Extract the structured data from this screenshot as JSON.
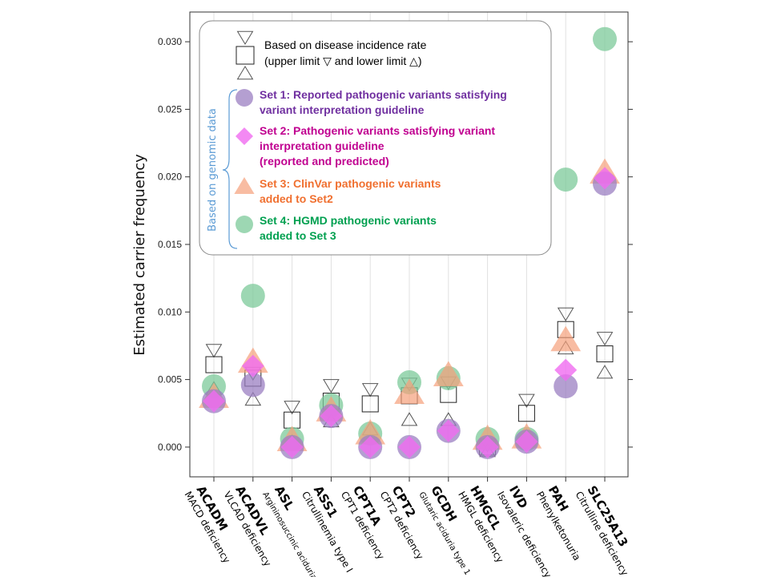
{
  "chart_data": {
    "type": "scatter",
    "ylabel": "Estimated carrier frequency",
    "ylim": [
      -0.0022,
      0.0322
    ],
    "yticks": [
      0.0,
      0.005,
      0.01,
      0.015,
      0.02,
      0.025,
      0.03
    ],
    "ytick_labels": [
      "0.000",
      "0.005",
      "0.010",
      "0.015",
      "0.020",
      "0.025",
      "0.030"
    ],
    "grid": "vertical",
    "legend_placement": "top-left",
    "categories": [
      {
        "gene": "ACADM",
        "disease": "MACD deficiency",
        "disease_small": false
      },
      {
        "gene": "ACADVL",
        "disease": "VLCAD deficiency",
        "disease_small": false
      },
      {
        "gene": "ASL",
        "disease": "Argininosuccinic aciduria",
        "disease_small": true
      },
      {
        "gene": "ASS1",
        "disease": "Citrullinemia type I",
        "disease_small": false
      },
      {
        "gene": "CPT1A",
        "disease": "CPT1 deficiency",
        "disease_small": false
      },
      {
        "gene": "CPT2",
        "disease": "CPT2 deficiency",
        "disease_small": false
      },
      {
        "gene": "GCDH",
        "disease": "Glutaric aciduria type 1",
        "disease_small": true
      },
      {
        "gene": "HMGCL",
        "disease": "HMGL deficiency",
        "disease_small": false
      },
      {
        "gene": "IVD",
        "disease": "Isovaleric deficiency",
        "disease_small": false
      },
      {
        "gene": "PAH",
        "disease": "Phenylketonuria",
        "disease_small": false
      },
      {
        "gene": "SLC25A13",
        "disease": "Citrulline deficiency",
        "disease_small": false
      }
    ],
    "incidence": {
      "upper": [
        0.0072,
        0.0055,
        0.003,
        0.0046,
        0.0043,
        0.0047,
        0.0048,
        0.0002,
        0.0035,
        0.0099,
        0.0081
      ],
      "point": [
        0.0061,
        0.0051,
        0.002,
        0.0034,
        0.0032,
        0.0038,
        0.0039,
        0.0,
        0.0025,
        0.0087,
        0.0069
      ],
      "lower": [
        0.0043,
        0.0035,
        0.0004,
        0.0019,
        0.0013,
        0.002,
        0.002,
        -0.0003,
        0.0008,
        0.0073,
        0.0055
      ]
    },
    "series": [
      {
        "name": "Set 1",
        "marker": "circle",
        "color": "#9b7fc2",
        "values": [
          0.0034,
          0.0046,
          0.0,
          0.0023,
          0.0,
          0.0,
          0.0012,
          0.0,
          0.0004,
          0.0045,
          0.0195
        ]
      },
      {
        "name": "Set 2",
        "marker": "diamond",
        "color": "#f06cf0",
        "values": [
          0.0034,
          0.006,
          0.0,
          0.0023,
          0.0,
          0.0,
          0.0012,
          0.0,
          0.0004,
          0.0057,
          0.0199
        ]
      },
      {
        "name": "Set 3",
        "marker": "triangle",
        "color": "#f5a07a",
        "values": [
          0.0037,
          0.0063,
          0.0005,
          0.0027,
          0.001,
          0.004,
          0.0053,
          0.0006,
          0.0007,
          0.0079,
          0.0203
        ]
      },
      {
        "name": "Set 4",
        "marker": "circle",
        "color": "#7cc99a",
        "values": [
          0.0045,
          0.0112,
          0.0006,
          0.0031,
          0.001,
          0.0048,
          0.0051,
          0.0006,
          0.0006,
          0.0198,
          0.0302
        ]
      }
    ]
  },
  "legend": {
    "incidence_line1": "Based on disease incidence rate",
    "incidence_line2": "(upper limit ▽ and lower limit △)",
    "brace_label": "Based on genomic data",
    "brace_color": "#5b9bd5",
    "sets": [
      {
        "lines": [
          "Set 1: Reported pathogenic variants satisfying",
          "variant interpretation guideline"
        ],
        "color": "#7030a0",
        "marker": "circle",
        "marker_color": "#9b7fc2"
      },
      {
        "lines": [
          "Set 2: Pathogenic variants satisfying variant",
          "interpretation guideline",
          " (reported and predicted)"
        ],
        "color": "#c00090",
        "marker": "diamond",
        "marker_color": "#f06cf0"
      },
      {
        "lines": [
          "Set 3: ClinVar pathogenic variants",
          " added to Set2"
        ],
        "color": "#f07030",
        "marker": "triangle",
        "marker_color": "#f5a07a"
      },
      {
        "lines": [
          "Set 4: HGMD pathogenic variants",
          " added to Set 3"
        ],
        "color": "#00a050",
        "marker": "circle",
        "marker_color": "#7cc99a"
      }
    ]
  }
}
